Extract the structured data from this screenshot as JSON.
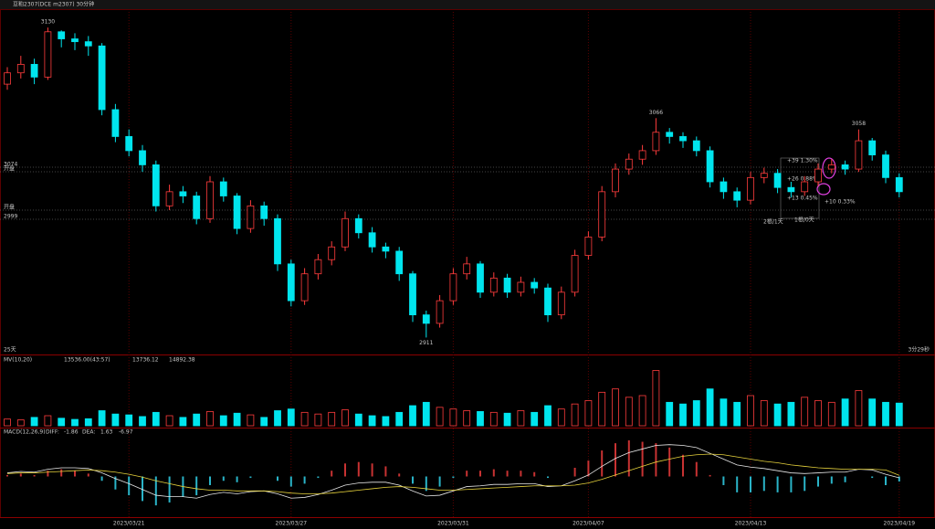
{
  "chart_data": [
    {
      "type": "candlestick",
      "title": "豆粕2307(DCE m2307)  30分钟",
      "categories": [
        null,
        null,
        null,
        null,
        null,
        null,
        null,
        null,
        null,
        "2023/03/21",
        null,
        null,
        null,
        null,
        null,
        null,
        null,
        null,
        null,
        null,
        null,
        "2023/03/27",
        null,
        null,
        null,
        null,
        null,
        null,
        null,
        null,
        null,
        null,
        null,
        "2023/03/31",
        null,
        null,
        null,
        null,
        null,
        null,
        null,
        null,
        null,
        "2023/04/07",
        null,
        null,
        null,
        null,
        null,
        null,
        null,
        null,
        null,
        null,
        null,
        "2023/04/13",
        null,
        null,
        null,
        null,
        null,
        null,
        null,
        null,
        null,
        null,
        "2023/04/19"
      ],
      "open": [
        3090,
        3098,
        3104,
        3095,
        3127,
        3122,
        3120,
        3117,
        3072,
        3053,
        3043,
        3033,
        3004,
        3014,
        3011,
        2995,
        3021,
        3011,
        2988,
        3004,
        2995,
        2963,
        2937,
        2956,
        2966,
        2975,
        2995,
        2985,
        2975,
        2972,
        2956,
        2927,
        2921,
        2937,
        2956,
        2963,
        2943,
        2953,
        2943,
        2950,
        2946,
        2927,
        2943,
        2969,
        2982,
        3014,
        3030,
        3037,
        3043,
        3056,
        3053,
        3050,
        3043,
        3021,
        3014,
        3008,
        3024,
        3027,
        3017,
        3014,
        3021,
        3030,
        3033,
        3030,
        3050,
        3040,
        3024
      ],
      "high": [
        3102,
        3110,
        3108,
        3130,
        3128,
        3126,
        3124,
        3119,
        3076,
        3058,
        3047,
        3036,
        3019,
        3018,
        3014,
        3025,
        3024,
        3013,
        3008,
        3007,
        2998,
        2966,
        2960,
        2970,
        2979,
        3000,
        2998,
        2989,
        2978,
        2975,
        2958,
        2930,
        2941,
        2960,
        2968,
        2965,
        2957,
        2956,
        2954,
        2953,
        2949,
        2947,
        2973,
        2986,
        3018,
        3034,
        3041,
        3047,
        3066,
        3059,
        3056,
        3053,
        3046,
        3024,
        3017,
        3028,
        3031,
        3030,
        3021,
        3025,
        3034,
        3037,
        3036,
        3058,
        3052,
        3043,
        3027
      ],
      "low": [
        3086,
        3094,
        3090,
        3093,
        3116,
        3114,
        3110,
        3068,
        3049,
        3039,
        3028,
        3000,
        3001,
        3006,
        2991,
        2992,
        3007,
        2984,
        2985,
        2990,
        2958,
        2933,
        2934,
        2952,
        2962,
        2972,
        2981,
        2971,
        2967,
        2951,
        2922,
        2911,
        2918,
        2934,
        2952,
        2939,
        2940,
        2939,
        2940,
        2942,
        2922,
        2924,
        2940,
        2966,
        2979,
        3010,
        3026,
        3033,
        3040,
        3048,
        3045,
        3039,
        3017,
        3009,
        3003,
        3005,
        3020,
        3013,
        3010,
        3011,
        3018,
        3027,
        3026,
        3028,
        3036,
        3020,
        3010
      ],
      "close": [
        3098,
        3104,
        3095,
        3127,
        3122,
        3120,
        3117,
        3072,
        3053,
        3043,
        3033,
        3004,
        3014,
        3011,
        2995,
        3021,
        3011,
        2988,
        3004,
        2995,
        2963,
        2937,
        2956,
        2966,
        2975,
        2995,
        2985,
        2975,
        2972,
        2956,
        2927,
        2921,
        2937,
        2956,
        2963,
        2943,
        2953,
        2943,
        2950,
        2946,
        2927,
        2943,
        2969,
        2982,
        3014,
        3030,
        3037,
        3043,
        3056,
        3053,
        3050,
        3043,
        3021,
        3014,
        3008,
        3024,
        3027,
        3017,
        3014,
        3021,
        3030,
        3033,
        3030,
        3050,
        3040,
        3024,
        3014
      ],
      "up_color": "#ff3c3c",
      "down_color": "#00e5ee",
      "ylim": [
        2899,
        3143
      ],
      "level_labels": [
        "3074",
        "开盘",
        "开盘",
        "2999"
      ],
      "tool_labels": [
        "+39  1.30%",
        "+26  0.88%",
        "+13  0.45%",
        "+10  0.33%",
        "2根/1天",
        "1根/0天"
      ],
      "footer_left": "25天",
      "footer_right": "3分29秒"
    },
    {
      "type": "bar",
      "title": "MV(10,20)",
      "readouts": [
        "13536.00(43:57)",
        "13736.12",
        "14892.38"
      ],
      "values": [
        4000,
        3500,
        5000,
        6000,
        4500,
        3800,
        4200,
        9000,
        7000,
        6500,
        5500,
        8000,
        6000,
        5000,
        7000,
        8500,
        6000,
        7500,
        6500,
        5000,
        9000,
        10000,
        8000,
        7000,
        8000,
        9500,
        7000,
        6000,
        5500,
        8000,
        12000,
        14000,
        11000,
        10000,
        9000,
        8500,
        8000,
        7500,
        9000,
        8000,
        12000,
        10000,
        13000,
        15000,
        20000,
        22000,
        17000,
        18000,
        33000,
        14000,
        13000,
        15000,
        22000,
        16000,
        14000,
        18000,
        15000,
        13000,
        14000,
        17000,
        15000,
        14000,
        16000,
        21000,
        16000,
        14000,
        13536
      ],
      "ylim": [
        0,
        36000
      ]
    },
    {
      "type": "macd",
      "title": "MACD(12,26,9)",
      "series": [
        {
          "name": "DIFF:",
          "color": "#e8e8e8",
          "values": [
            5,
            7,
            6,
            10,
            12,
            12,
            11,
            5,
            -3,
            -10,
            -18,
            -26,
            -28,
            -28,
            -30,
            -25,
            -22,
            -24,
            -21,
            -20,
            -24,
            -30,
            -29,
            -25,
            -19,
            -12,
            -9,
            -8,
            -8,
            -12,
            -20,
            -27,
            -26,
            -20,
            -14,
            -13,
            -11,
            -11,
            -10,
            -10,
            -14,
            -13,
            -6,
            2,
            14,
            25,
            33,
            38,
            43,
            44,
            43,
            40,
            32,
            24,
            16,
            13,
            11,
            8,
            5,
            4,
            5,
            6,
            6,
            10,
            9,
            3,
            -1.86
          ]
        },
        {
          "name": "DEA:",
          "color": "#e6d23c",
          "values": [
            4,
            5,
            5,
            6,
            7,
            8,
            9,
            8,
            6,
            3,
            -1,
            -6,
            -10,
            -14,
            -17,
            -19,
            -19,
            -20,
            -20,
            -20,
            -21,
            -23,
            -24,
            -24,
            -23,
            -21,
            -19,
            -17,
            -15,
            -14,
            -15,
            -17,
            -19,
            -19,
            -18,
            -17,
            -16,
            -15,
            -14,
            -13,
            -13,
            -13,
            -12,
            -9,
            -4,
            2,
            8,
            14,
            20,
            24,
            28,
            30,
            31,
            30,
            27,
            24,
            21,
            19,
            16,
            14,
            12,
            11,
            10,
            10,
            10,
            9,
            1.63
          ]
        }
      ],
      "histogram": {
        "up_color": "#c83232",
        "down_color": "#2ab4c8",
        "values": [
          2,
          4,
          2,
          8,
          10,
          8,
          4,
          -6,
          -18,
          -26,
          -34,
          -40,
          -36,
          -28,
          -26,
          -12,
          -6,
          -8,
          -2,
          0,
          -6,
          -14,
          -10,
          -2,
          8,
          18,
          20,
          18,
          14,
          4,
          -10,
          -20,
          -14,
          -2,
          8,
          8,
          10,
          8,
          8,
          6,
          -2,
          0,
          12,
          22,
          36,
          46,
          50,
          48,
          46,
          40,
          30,
          20,
          2,
          -12,
          -22,
          -22,
          -20,
          -22,
          -22,
          -20,
          -14,
          -10,
          -8,
          0,
          -2,
          -12,
          -6.97
        ]
      },
      "ylim": [
        -55,
        55
      ]
    }
  ]
}
